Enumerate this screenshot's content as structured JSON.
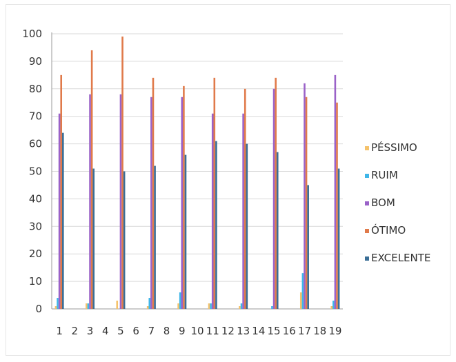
{
  "chart_data": {
    "type": "bar",
    "categories": [
      "1",
      "2",
      "3",
      "4",
      "5",
      "6",
      "7",
      "8",
      "9",
      "10",
      "11",
      "12",
      "13",
      "14",
      "15",
      "16",
      "17",
      "18",
      "19"
    ],
    "series": [
      {
        "name": "PÉSSIMO",
        "color": "#f5c26b",
        "values": [
          1,
          0,
          2,
          0,
          3,
          0,
          1,
          0,
          2,
          0,
          2,
          0,
          1,
          0,
          0,
          0,
          6,
          0,
          1
        ]
      },
      {
        "name": "RUIM",
        "color": "#3fb6e8",
        "values": [
          4,
          0,
          2,
          0,
          0,
          0,
          4,
          0,
          6,
          0,
          2,
          0,
          2,
          0,
          1,
          0,
          13,
          0,
          3
        ]
      },
      {
        "name": "BOM",
        "color": "#9a62c8",
        "values": [
          71,
          0,
          78,
          0,
          78,
          0,
          77,
          0,
          77,
          0,
          71,
          0,
          71,
          0,
          80,
          0,
          82,
          0,
          85
        ]
      },
      {
        "name": "ÓTIMO",
        "color": "#e07a4a",
        "values": [
          85,
          0,
          94,
          0,
          99,
          0,
          84,
          0,
          81,
          0,
          84,
          0,
          80,
          0,
          84,
          0,
          77,
          0,
          75
        ]
      },
      {
        "name": "EXCELENTE",
        "color": "#3a6e96",
        "values": [
          64,
          0,
          51,
          0,
          50,
          0,
          52,
          0,
          56,
          0,
          61,
          0,
          60,
          0,
          57,
          0,
          45,
          0,
          51
        ]
      }
    ],
    "yticks": [
      0,
      10,
      20,
      30,
      40,
      50,
      60,
      70,
      80,
      90,
      100
    ],
    "ylim": [
      0,
      100
    ],
    "grid": true,
    "legend": "right"
  }
}
